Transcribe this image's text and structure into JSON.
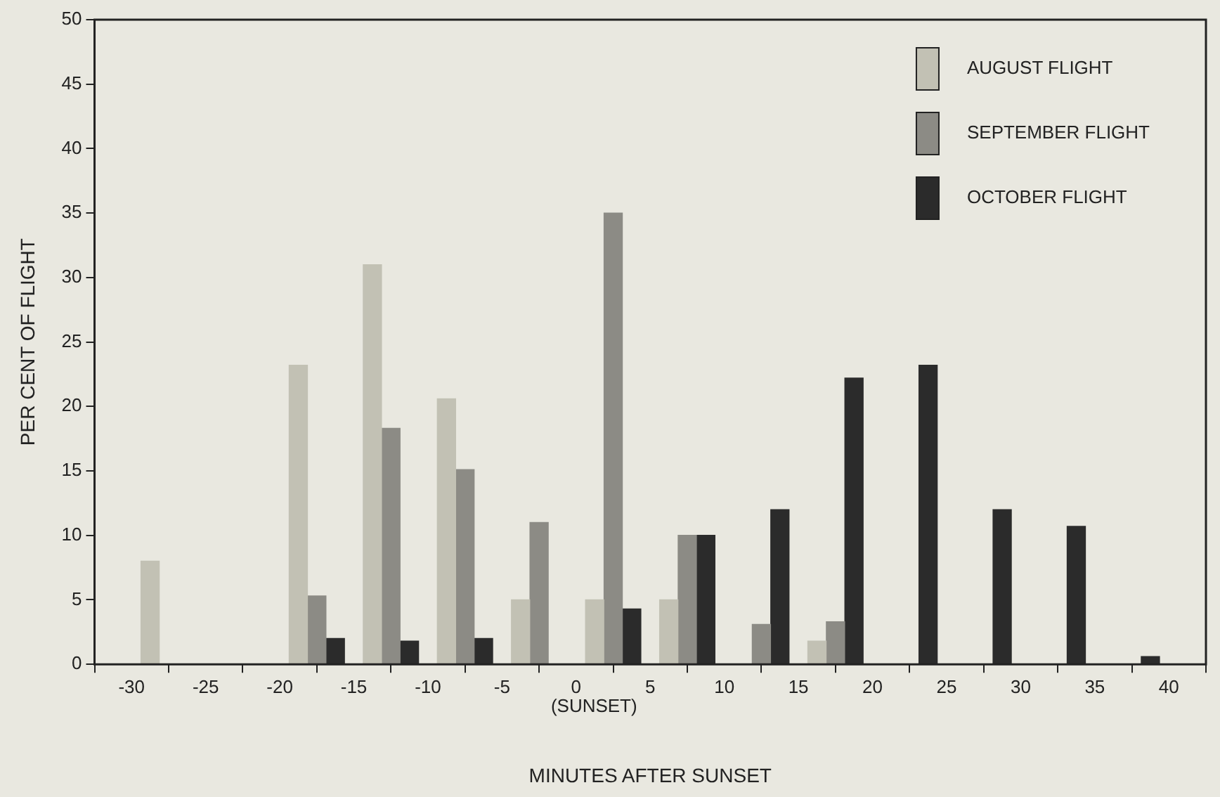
{
  "chart_data": {
    "type": "bar",
    "xlabel": "MINUTES AFTER SUNSET",
    "ylabel": "PER CENT OF FLIGHT",
    "xlim": [
      -30,
      40
    ],
    "xticks": [
      -30,
      -25,
      -20,
      -15,
      -10,
      -5,
      0,
      5,
      10,
      15,
      20,
      25,
      30,
      35,
      40
    ],
    "ylim": [
      0,
      50
    ],
    "yticks": [
      0,
      5,
      10,
      15,
      20,
      25,
      30,
      35,
      40,
      45,
      50
    ],
    "series": [
      {
        "name": "AUGUST FLIGHT",
        "color": "#c2c1b4",
        "x": [
          -28.75,
          -18.75,
          -13.75,
          -8.75,
          -3.75,
          1.25,
          6.25,
          16.25
        ],
        "values": [
          8,
          23.2,
          31,
          20.6,
          5,
          5,
          5,
          1.8
        ]
      },
      {
        "name": "SEPTEMBER FLIGHT",
        "color": "#8c8b85",
        "x": [
          -17.5,
          -12.5,
          -7.5,
          -2.5,
          2.5,
          7.5,
          12.5,
          17.5
        ],
        "values": [
          5.3,
          18.3,
          15.1,
          11,
          35,
          10,
          3.1,
          3.3
        ]
      },
      {
        "name": "OCTOBER FLIGHT",
        "color": "#2b2b2b",
        "x": [
          -16.25,
          -11.25,
          -6.25,
          3.75,
          8.75,
          13.75,
          18.75,
          23.75,
          28.75,
          33.75,
          38.75
        ],
        "values": [
          2,
          1.8,
          2,
          4.3,
          10,
          12,
          22.2,
          23.2,
          12,
          10.7,
          0.6
        ]
      }
    ],
    "annotations": [
      "(SUNSET)"
    ],
    "legend": "top right",
    "grid": false
  }
}
